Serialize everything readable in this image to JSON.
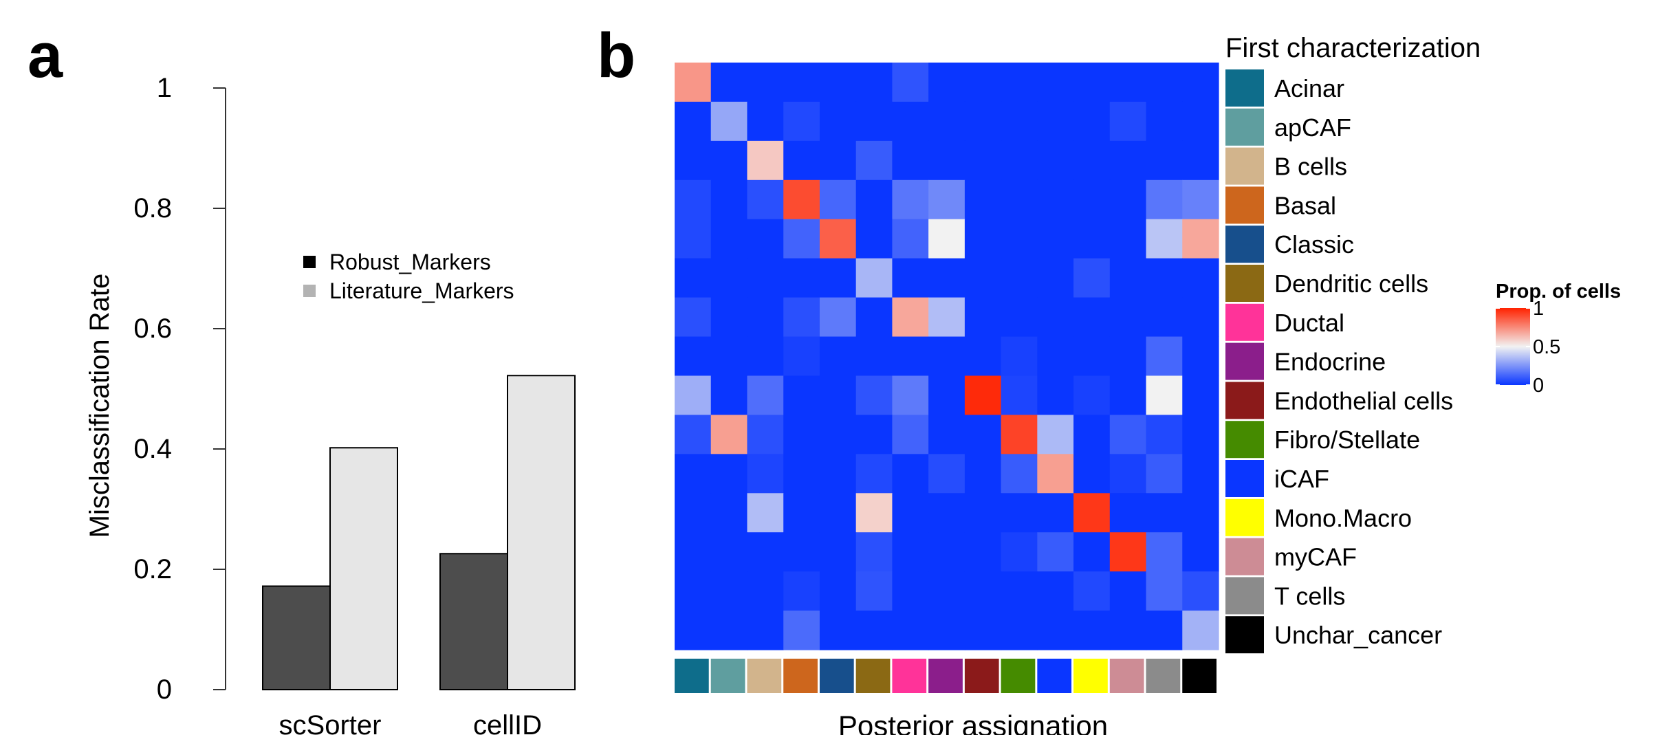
{
  "panel_a": {
    "letter": "a",
    "chart_data": {
      "type": "bar",
      "title": "",
      "xlabel": "",
      "ylabel": "Misclassification Rate",
      "ylim": [
        0,
        1
      ],
      "yticks": [
        "0",
        "0.2",
        "0.4",
        "0.6",
        "0.8",
        "1"
      ],
      "categories": [
        "scSorter",
        "cellID"
      ],
      "series": [
        {
          "name": "Robust_Markers",
          "values": [
            0.172,
            0.226
          ],
          "color": "#4d4d4d"
        },
        {
          "name": "Literature_Markers",
          "values": [
            0.402,
            0.522
          ],
          "color": "#e6e6e6"
        }
      ],
      "legend_position": "top-middle"
    }
  },
  "panel_b": {
    "letter": "b",
    "chart_data": {
      "type": "heatmap",
      "xlabel": "Posterior assignation",
      "ylabel": "",
      "legend_title": "First characterization",
      "categories": [
        "Acinar",
        "apCAF",
        "B cells",
        "Basal",
        "Classic",
        "Dendritic cells",
        "Ductal",
        "Endocrine",
        "Endothelial cells",
        "Fibro/Stellate",
        "iCAF",
        "Mono.Macro",
        "myCAF",
        "T cells",
        "Unchar_cancer"
      ],
      "category_colors": [
        "#0e6d8b",
        "#5f9e9f",
        "#d2b48c",
        "#cd661d",
        "#174f8c",
        "#8b6914",
        "#ff3399",
        "#8b1e8b",
        "#8b1a1a",
        "#458b00",
        "#0a36ff",
        "#ffff00",
        "#cd8c95",
        "#8b8b8b",
        "#000000"
      ],
      "colorbar": {
        "title": "Prop. of cells",
        "ticks": [
          "0",
          "0.5",
          "1"
        ],
        "colors": [
          "#0a36ff",
          "#f2f2f2",
          "#ff2200"
        ]
      },
      "matrix": [
        [
          0.72,
          0,
          0,
          0,
          0,
          0,
          0.08,
          0,
          0,
          0,
          0,
          0,
          0,
          0,
          0
        ],
        [
          0,
          0.3,
          0,
          0.05,
          0,
          0,
          0,
          0,
          0,
          0,
          0,
          0,
          0.05,
          0,
          0
        ],
        [
          0,
          0,
          0.6,
          0,
          0,
          0.1,
          0,
          0,
          0,
          0,
          0,
          0,
          0,
          0,
          0
        ],
        [
          0.05,
          0,
          0.07,
          0.9,
          0.13,
          0,
          0.17,
          0.22,
          0,
          0,
          0,
          0,
          0,
          0.17,
          0.2
        ],
        [
          0.05,
          0,
          0,
          0.12,
          0.85,
          0,
          0.12,
          0.5,
          0,
          0,
          0,
          0,
          0,
          0.38,
          0.68
        ],
        [
          0,
          0,
          0,
          0,
          0,
          0.34,
          0,
          0,
          0,
          0,
          0,
          0.07,
          0,
          0,
          0
        ],
        [
          0.07,
          0,
          0,
          0.07,
          0.18,
          0,
          0.68,
          0.36,
          0,
          0,
          0,
          0,
          0,
          0,
          0
        ],
        [
          0,
          0,
          0,
          0.03,
          0,
          0,
          0,
          0,
          0,
          0.03,
          0,
          0,
          0,
          0.13,
          0
        ],
        [
          0.32,
          0,
          0.15,
          0,
          0,
          0.08,
          0.18,
          0,
          0.98,
          0.04,
          0,
          0.03,
          0,
          0.5,
          0
        ],
        [
          0.07,
          0.7,
          0.07,
          0,
          0,
          0,
          0.12,
          0,
          0,
          0.92,
          0.35,
          0,
          0.1,
          0.05,
          0
        ],
        [
          0,
          0,
          0.04,
          0,
          0,
          0.05,
          0,
          0.06,
          0,
          0.1,
          0.7,
          0,
          0.03,
          0.1,
          0
        ],
        [
          0,
          0,
          0.36,
          0,
          0,
          0.58,
          0,
          0,
          0,
          0,
          0,
          0.95,
          0,
          0,
          0
        ],
        [
          0,
          0,
          0,
          0,
          0,
          0.07,
          0,
          0,
          0,
          0.03,
          0.1,
          0,
          0.95,
          0.13,
          0
        ],
        [
          0,
          0,
          0,
          0.03,
          0,
          0.08,
          0,
          0,
          0,
          0,
          0,
          0.05,
          0,
          0.13,
          0.07
        ],
        [
          0,
          0,
          0,
          0.14,
          0,
          0,
          0,
          0,
          0,
          0,
          0,
          0,
          0,
          0,
          0.33
        ]
      ]
    }
  }
}
